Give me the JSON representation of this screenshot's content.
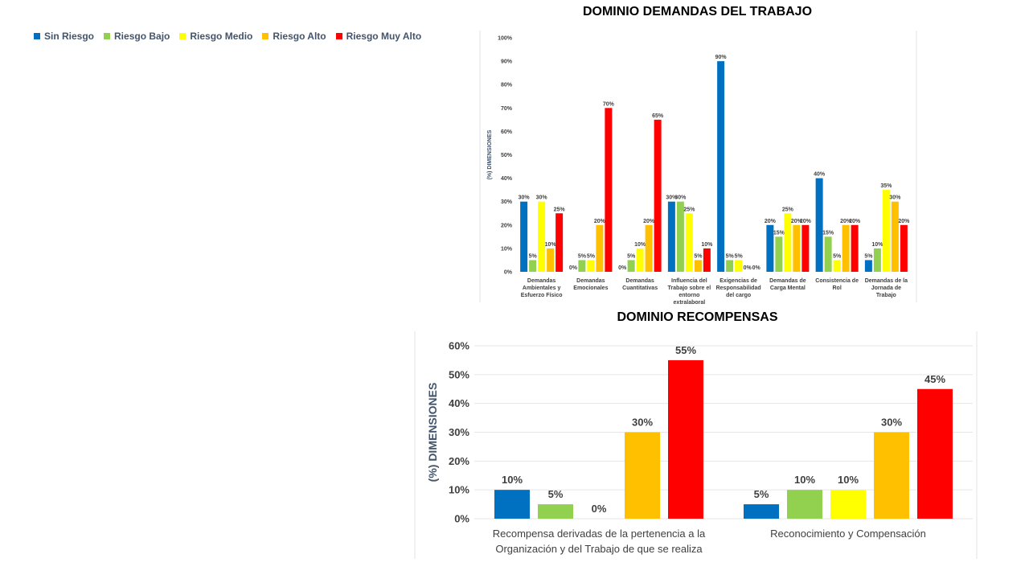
{
  "legend": [
    {
      "label": "Sin Riesgo",
      "color": "#0070c0"
    },
    {
      "label": "Riesgo Bajo",
      "color": "#92d050"
    },
    {
      "label": "Riesgo Medio",
      "color": "#ffff00"
    },
    {
      "label": "Riesgo Alto",
      "color": "#ffc000"
    },
    {
      "label": "Riesgo Muy Alto",
      "color": "#ff0000"
    }
  ],
  "chart_data": [
    {
      "type": "bar",
      "title": "DOMINIO DEMANDAS DEL TRABAJO",
      "ylabel": "(%) DIMENSIONES",
      "ylim": [
        0,
        100
      ],
      "yticks": [
        "0%",
        "10%",
        "20%",
        "30%",
        "40%",
        "50%",
        "60%",
        "70%",
        "80%",
        "90%",
        "100%"
      ],
      "categories": [
        [
          "Demandas",
          "Ambientales y",
          "Esfuerzo Físico"
        ],
        [
          "Demandas",
          "Emocionales"
        ],
        [
          "Demandas",
          "Cuantitativas"
        ],
        [
          "Influencia del",
          "Trabajo sobre el",
          "entorno",
          "extralaboral"
        ],
        [
          "Exigencias de",
          "Responsabilidad",
          "del cargo"
        ],
        [
          "Demandas de",
          "Carga Mental"
        ],
        [
          "Consistencia de",
          "Rol"
        ],
        [
          "Demandas de la",
          "Jornada de",
          "Trabajo"
        ]
      ],
      "series": [
        {
          "name": "Sin Riesgo",
          "values": [
            30,
            0,
            0,
            30,
            90,
            20,
            40,
            5
          ]
        },
        {
          "name": "Riesgo Bajo",
          "values": [
            5,
            5,
            5,
            30,
            5,
            15,
            15,
            10
          ]
        },
        {
          "name": "Riesgo Medio",
          "values": [
            30,
            5,
            10,
            25,
            5,
            25,
            5,
            35
          ]
        },
        {
          "name": "Riesgo Alto",
          "values": [
            10,
            20,
            20,
            5,
            0,
            20,
            20,
            30
          ]
        },
        {
          "name": "Riesgo Muy Alto",
          "values": [
            25,
            70,
            65,
            10,
            0,
            20,
            20,
            20
          ]
        }
      ],
      "legend": "top-left"
    },
    {
      "type": "bar",
      "title": "DOMINIO RECOMPENSAS",
      "ylabel": "(%) DIMENSIONES",
      "ylim": [
        0,
        60
      ],
      "yticks": [
        "0%",
        "10%",
        "20%",
        "30%",
        "40%",
        "50%",
        "60%"
      ],
      "categories": [
        [
          "Recompensa derivadas de la pertenencia a la",
          "Organización y del Trabajo de que se realiza"
        ],
        [
          "Reconocimiento y Compensación"
        ]
      ],
      "series": [
        {
          "name": "Sin Riesgo",
          "values": [
            10,
            5
          ]
        },
        {
          "name": "Riesgo Bajo",
          "values": [
            5,
            10
          ]
        },
        {
          "name": "Riesgo Medio",
          "values": [
            0,
            10
          ]
        },
        {
          "name": "Riesgo Alto",
          "values": [
            30,
            30
          ]
        },
        {
          "name": "Riesgo Muy Alto",
          "values": [
            55,
            45
          ]
        }
      ],
      "legend": "top-left"
    }
  ]
}
